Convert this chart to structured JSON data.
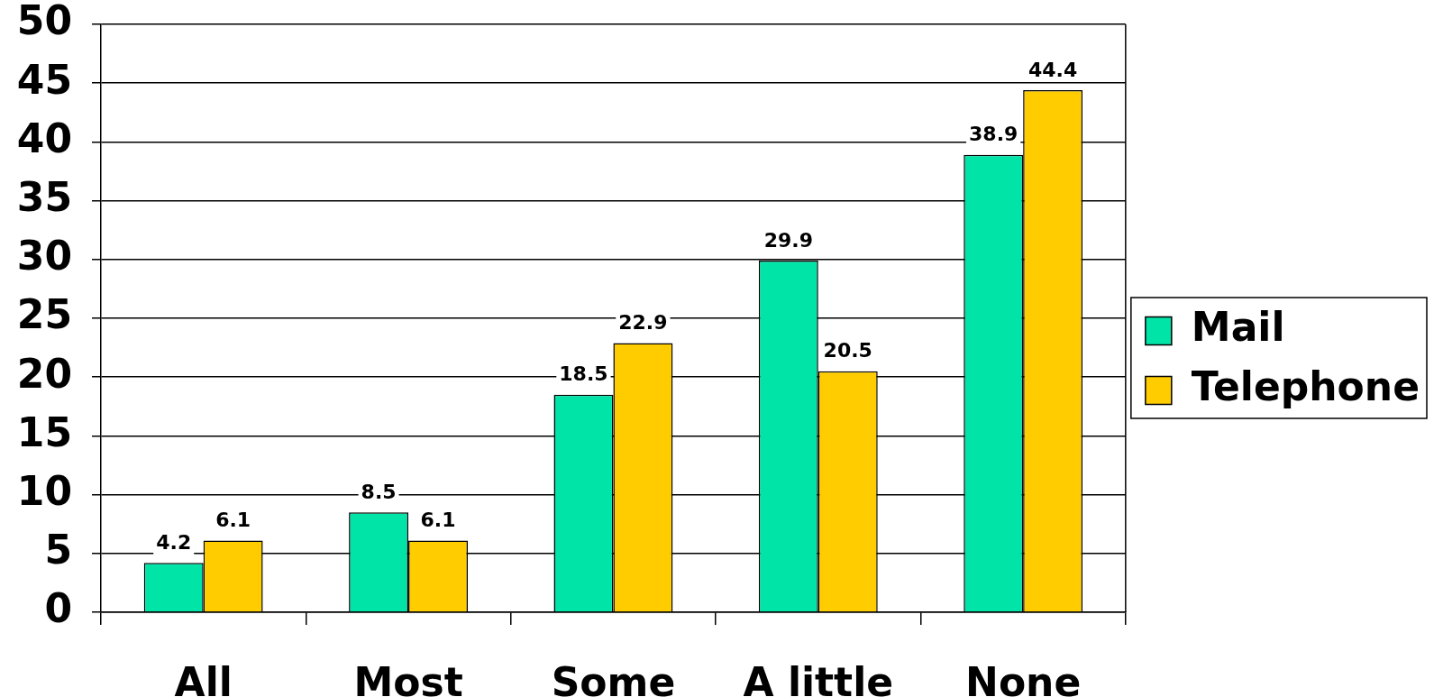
{
  "chart_data": {
    "type": "bar",
    "categories": [
      "All",
      "Most",
      "Some",
      "A little",
      "None"
    ],
    "series": [
      {
        "name": "Mail",
        "color": "#00e4a8",
        "values": [
          4.2,
          8.5,
          18.5,
          29.9,
          38.9
        ]
      },
      {
        "name": "Telephone",
        "color": "#ffcc00",
        "values": [
          6.1,
          6.1,
          22.9,
          20.5,
          44.4
        ]
      }
    ],
    "ylim": [
      0,
      50
    ],
    "yticks": [
      0,
      5,
      10,
      15,
      20,
      25,
      30,
      35,
      40,
      45,
      50
    ],
    "grid": "y",
    "legend": "right",
    "data_labels": true
  }
}
